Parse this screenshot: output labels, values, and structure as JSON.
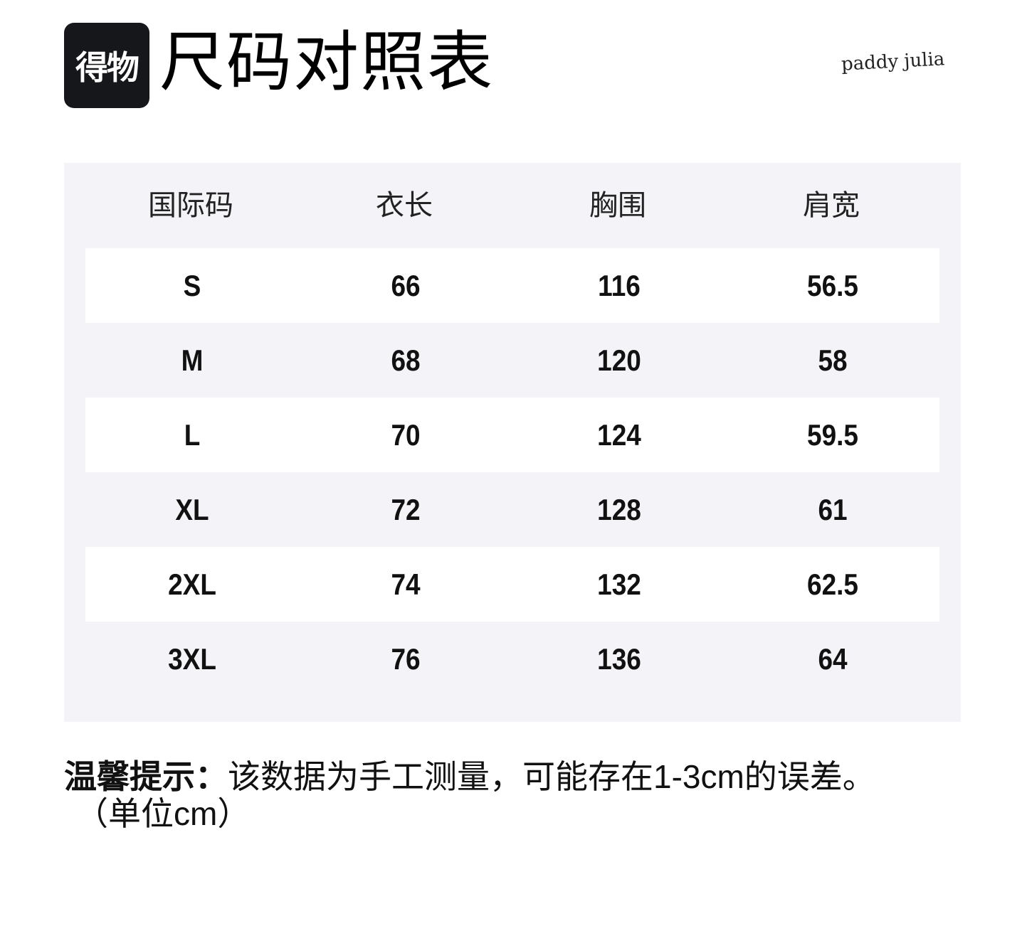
{
  "header": {
    "logo_text": "得物",
    "title": "尺码对照表",
    "brand": "paddy julia"
  },
  "table": {
    "columns": [
      "国际码",
      "衣长",
      "胸围",
      "肩宽"
    ],
    "rows": [
      [
        "S",
        "66",
        "116",
        "56.5"
      ],
      [
        "M",
        "68",
        "120",
        "58"
      ],
      [
        "L",
        "70",
        "124",
        "59.5"
      ],
      [
        "XL",
        "72",
        "128",
        "61"
      ],
      [
        "2XL",
        "74",
        "132",
        "62.5"
      ],
      [
        "3XL",
        "76",
        "136",
        "64"
      ]
    ]
  },
  "footer": {
    "tip_label": "温馨提示：",
    "tip_text": "该数据为手工测量，可能存在1-3cm的误差。",
    "unit": "（单位cm）"
  }
}
